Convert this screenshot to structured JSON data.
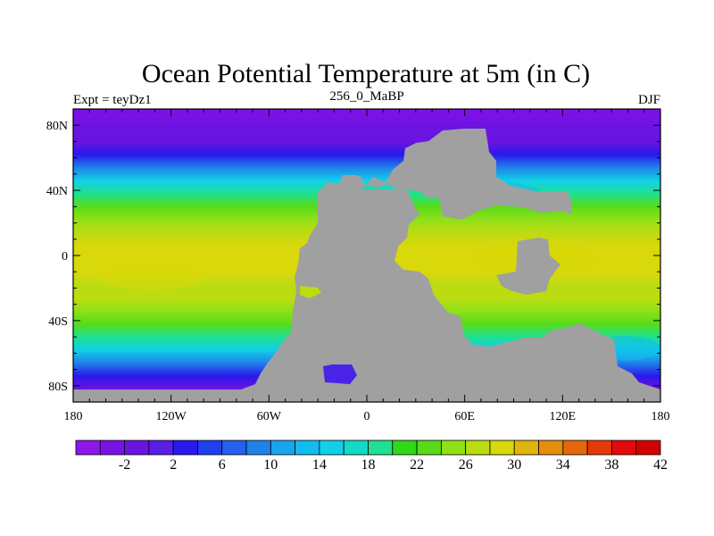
{
  "chart_data": {
    "type": "heatmap",
    "title": "Ocean Potential Temperature at 5m (in C)",
    "subtitle_left": "Expt = teyDz1",
    "subtitle_center": "256_0_MaBP",
    "subtitle_right": "DJF",
    "xlim": [
      -180,
      180
    ],
    "ylim": [
      -90,
      90
    ],
    "x_ticks": [
      {
        "value": -180,
        "label": "180"
      },
      {
        "value": -120,
        "label": "120W"
      },
      {
        "value": -60,
        "label": "60W"
      },
      {
        "value": 0,
        "label": "0"
      },
      {
        "value": 60,
        "label": "60E"
      },
      {
        "value": 120,
        "label": "120E"
      },
      {
        "value": 180,
        "label": "180"
      }
    ],
    "y_ticks": [
      {
        "value": 80,
        "label": "80N"
      },
      {
        "value": 40,
        "label": "40N"
      },
      {
        "value": 0,
        "label": "0"
      },
      {
        "value": -40,
        "label": "40S"
      },
      {
        "value": -80,
        "label": "80S"
      }
    ],
    "land_color": "#a0a0a0",
    "zonal_profile_lat": [
      -90,
      -82,
      -74,
      -66,
      -58,
      -50,
      -42,
      -34,
      -26,
      -18,
      -10,
      -2,
      6,
      14,
      22,
      30,
      38,
      46,
      54,
      62,
      70,
      78,
      86,
      90
    ],
    "zonal_profile_temp": [
      -1,
      0,
      5,
      11,
      16,
      20,
      24,
      27,
      28.5,
      29.5,
      30,
      30.5,
      30,
      29,
      27,
      24,
      20,
      16,
      10,
      4,
      1,
      0,
      -1,
      -1
    ],
    "colorbar": {
      "levels": [
        -4,
        -2,
        0,
        2,
        4,
        6,
        8,
        10,
        12,
        14,
        16,
        18,
        20,
        22,
        24,
        26,
        28,
        30,
        32,
        34,
        36,
        38,
        40,
        42,
        44
      ],
      "tick_labels": [
        "-2",
        "2",
        "6",
        "10",
        "14",
        "18",
        "22",
        "26",
        "30",
        "34",
        "38",
        "42"
      ],
      "colors": [
        "#8d18e8",
        "#7a12e6",
        "#6a14e0",
        "#5a1ee6",
        "#2a18ec",
        "#1f40ee",
        "#2660ee",
        "#1f82ea",
        "#18a4ee",
        "#12bcee",
        "#12d0e8",
        "#16d8c8",
        "#1ee090",
        "#30d818",
        "#58dc18",
        "#90e018",
        "#bcdc12",
        "#d8d80a",
        "#e0b40a",
        "#e48e0a",
        "#e4680a",
        "#e43a0a",
        "#e40a0a",
        "#d20000"
      ]
    }
  }
}
